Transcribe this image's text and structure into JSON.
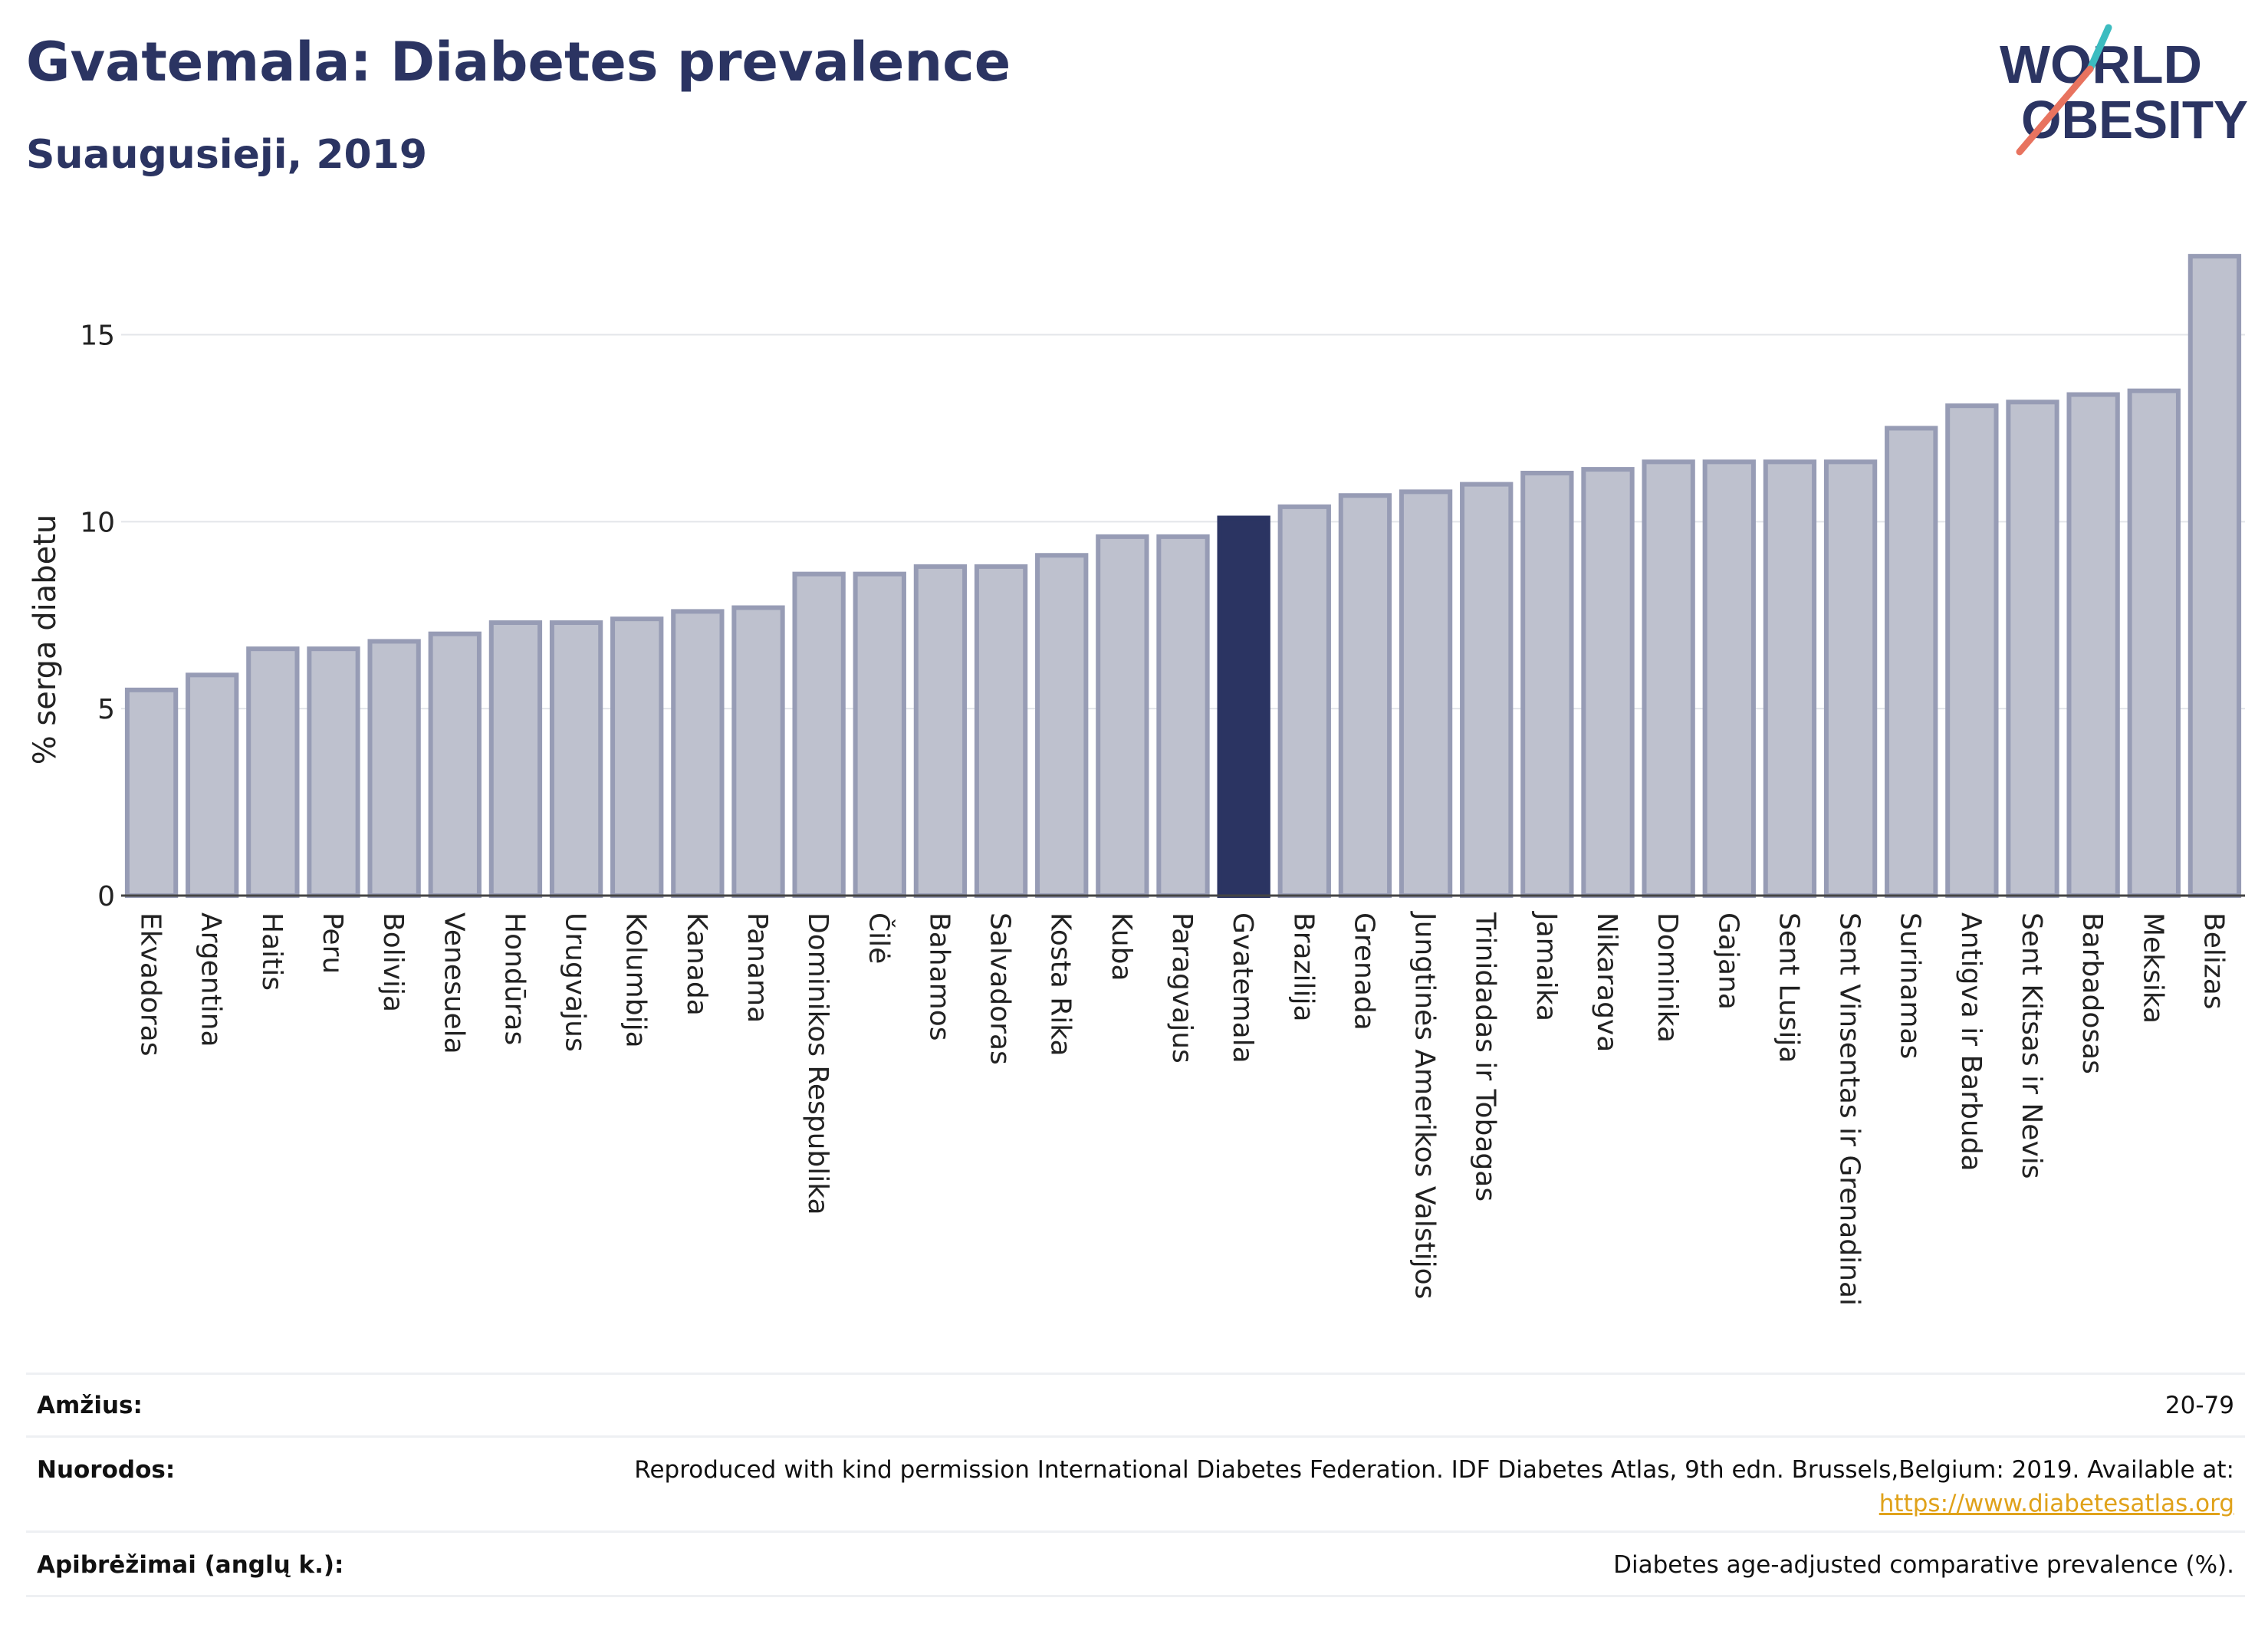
{
  "header": {
    "title": "Gvatemala: Diabetes prevalence",
    "subtitle": "Suaugusieji, 2019",
    "logo_line1": "WORLD",
    "logo_line2": "OBESITY"
  },
  "chart_data": {
    "type": "bar",
    "title": "Gvatemala: Diabetes prevalence",
    "subtitle": "Suaugusieji, 2019",
    "ylabel": "% serga diabetu",
    "xlabel": "",
    "ylim": [
      0,
      17.8
    ],
    "yticks": [
      0,
      5,
      10,
      15
    ],
    "grid": true,
    "highlight": "Gvatemala",
    "colors": {
      "bar": "#bec1ce",
      "bar_edge": "#979cb5",
      "highlight": "#2b3462"
    },
    "categories": [
      "Ekvadoras",
      "Argentina",
      "Haitis",
      "Peru",
      "Bolivija",
      "Venesuela",
      "Hondūras",
      "Urugvajus",
      "Kolumbija",
      "Kanada",
      "Panama",
      "Dominikos Respublika",
      "Čilė",
      "Bahamos",
      "Salvadoras",
      "Kosta Rika",
      "Kuba",
      "Paragvajus",
      "Gvatemala",
      "Brazilija",
      "Grenada",
      "Jungtinės Amerikos Valstijos",
      "Trinidadas ir Tobagas",
      "Jamaika",
      "Nikaragva",
      "Dominika",
      "Gajana",
      "Sent Lusija",
      "Sent Vinsentas ir Grenadinai",
      "Surinamas",
      "Antigva ir Barbuda",
      "Sent Kitsas ir Nevis",
      "Barbadosas",
      "Meksika",
      "Belizas"
    ],
    "values": [
      5.5,
      5.9,
      6.6,
      6.6,
      6.8,
      7.0,
      7.3,
      7.3,
      7.4,
      7.6,
      7.7,
      8.6,
      8.6,
      8.8,
      8.8,
      9.1,
      9.6,
      9.6,
      10.1,
      10.4,
      10.7,
      10.8,
      11.0,
      11.3,
      11.4,
      11.6,
      11.6,
      11.6,
      11.6,
      12.5,
      13.1,
      13.2,
      13.4,
      13.5,
      17.1
    ]
  },
  "footer": {
    "age_label": "Amžius:",
    "age_value": "20-79",
    "refs_label": "Nuorodos:",
    "refs_value": "Reproduced with kind permission International Diabetes Federation. IDF Diabetes Atlas, 9th edn. Brussels,Belgium: 2019. Available at:",
    "refs_link": "https://www.diabetesatlas.org",
    "defs_label": "Apibrėžimai (anglų k.):",
    "defs_value": "Diabetes age-adjusted comparative prevalence (%)."
  }
}
